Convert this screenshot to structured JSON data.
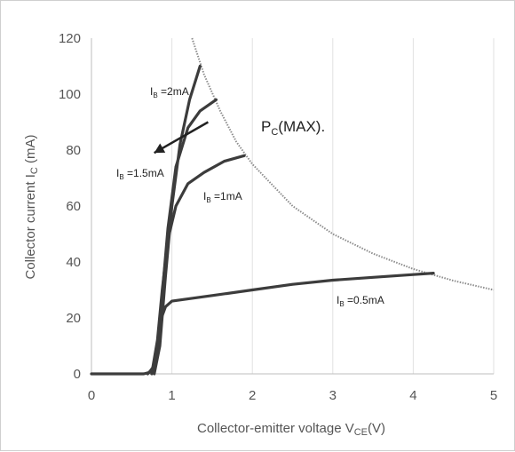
{
  "chart_data": {
    "type": "line",
    "title": "",
    "xlabel": "Collector-emitter voltage V",
    "xlabel_sub": "CE",
    "xlabel_suffix": "(V)",
    "ylabel": "Collector current I",
    "ylabel_sub": "C",
    "ylabel_suffix": " (mA)",
    "xlim": [
      0,
      5
    ],
    "ylim": [
      0,
      120
    ],
    "x_ticks": [
      0,
      1,
      2,
      3,
      4,
      5
    ],
    "y_ticks": [
      0,
      20,
      40,
      60,
      80,
      100,
      120
    ],
    "grid": "vertical",
    "series": [
      {
        "label": "I",
        "label_sub": "B",
        "label_value": " =0.5mA",
        "points": [
          [
            0,
            0
          ],
          [
            0.65,
            0
          ],
          [
            0.72,
            0.5
          ],
          [
            0.78,
            3
          ],
          [
            0.82,
            10
          ],
          [
            0.87,
            20
          ],
          [
            0.92,
            24
          ],
          [
            1.0,
            26
          ],
          [
            1.5,
            28
          ],
          [
            2.0,
            30
          ],
          [
            2.5,
            32
          ],
          [
            3.0,
            33.5
          ],
          [
            3.5,
            34.5
          ],
          [
            4.0,
            35.5
          ],
          [
            4.25,
            36
          ]
        ]
      },
      {
        "label": "I",
        "label_sub": "B",
        "label_value": " =1mA",
        "points": [
          [
            0.7,
            0
          ],
          [
            0.76,
            2
          ],
          [
            0.82,
            12
          ],
          [
            0.88,
            30
          ],
          [
            0.95,
            48
          ],
          [
            1.05,
            60
          ],
          [
            1.2,
            68
          ],
          [
            1.4,
            72
          ],
          [
            1.65,
            76
          ],
          [
            1.9,
            78
          ]
        ]
      },
      {
        "label": "I",
        "label_sub": "B",
        "label_value": " =1.5mA",
        "points": [
          [
            0.75,
            0
          ],
          [
            0.8,
            5
          ],
          [
            0.87,
            25
          ],
          [
            0.95,
            52
          ],
          [
            1.05,
            74
          ],
          [
            1.2,
            88
          ],
          [
            1.35,
            94
          ],
          [
            1.55,
            98
          ]
        ]
      },
      {
        "label": "I",
        "label_sub": "B",
        "label_value": " =2mA",
        "points": [
          [
            0.78,
            0
          ],
          [
            0.85,
            10
          ],
          [
            0.92,
            35
          ],
          [
            1.0,
            60
          ],
          [
            1.1,
            82
          ],
          [
            1.22,
            98
          ],
          [
            1.35,
            110
          ]
        ]
      }
    ],
    "pc_max": {
      "label": "P",
      "label_sub": "C",
      "label_suffix": "(MAX).",
      "points": [
        [
          1.25,
          120
        ],
        [
          1.4,
          107
        ],
        [
          1.6,
          94
        ],
        [
          1.8,
          83
        ],
        [
          2.0,
          75
        ],
        [
          2.5,
          60
        ],
        [
          3.0,
          50
        ],
        [
          3.5,
          43
        ],
        [
          4.0,
          37.5
        ],
        [
          4.5,
          33.3
        ],
        [
          5.0,
          30
        ]
      ]
    },
    "arrow": {
      "from": [
        1.45,
        90
      ],
      "to": [
        0.78,
        79
      ]
    }
  }
}
